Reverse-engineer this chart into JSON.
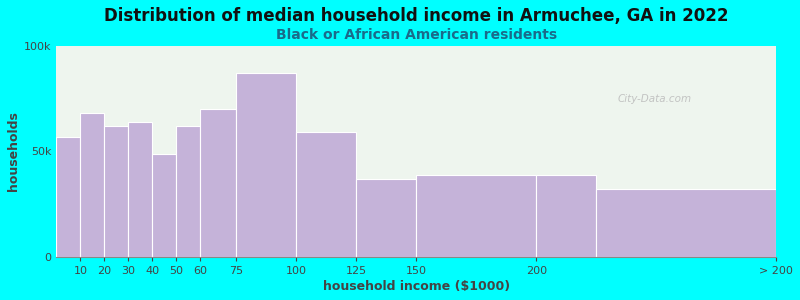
{
  "title": "Distribution of median household income in Armuchee, GA in 2022",
  "subtitle": "Black or African American residents",
  "xlabel": "household income ($1000)",
  "ylabel": "households",
  "background_color": "#00FFFF",
  "plot_bg_color": "#eef5ee",
  "bar_color": "#c5b3d9",
  "bar_edge_color": "#ffffff",
  "bin_edges": [
    0,
    10,
    20,
    30,
    40,
    50,
    60,
    75,
    100,
    125,
    150,
    200,
    225,
    300
  ],
  "bin_labels": [
    "10",
    "20",
    "30",
    "40",
    "50",
    "60",
    "75",
    "100",
    "125",
    "150",
    "200",
    "> 200"
  ],
  "values": [
    57000,
    68000,
    62000,
    64000,
    49000,
    62000,
    70000,
    87000,
    59000,
    37000,
    39000,
    39000,
    32000
  ],
  "xtick_positions": [
    10,
    20,
    30,
    40,
    50,
    60,
    75,
    100,
    125,
    150,
    200,
    300
  ],
  "xtick_labels": [
    "10",
    "20",
    "30",
    "40",
    "50",
    "60",
    "75",
    "100",
    "125",
    "150",
    "200",
    "> 200"
  ],
  "ylim": [
    0,
    100000
  ],
  "yticks": [
    0,
    50000,
    100000
  ],
  "ytick_labels": [
    "0",
    "50k",
    "100k"
  ],
  "title_fontsize": 12,
  "subtitle_fontsize": 10,
  "axis_label_fontsize": 9,
  "tick_fontsize": 8
}
